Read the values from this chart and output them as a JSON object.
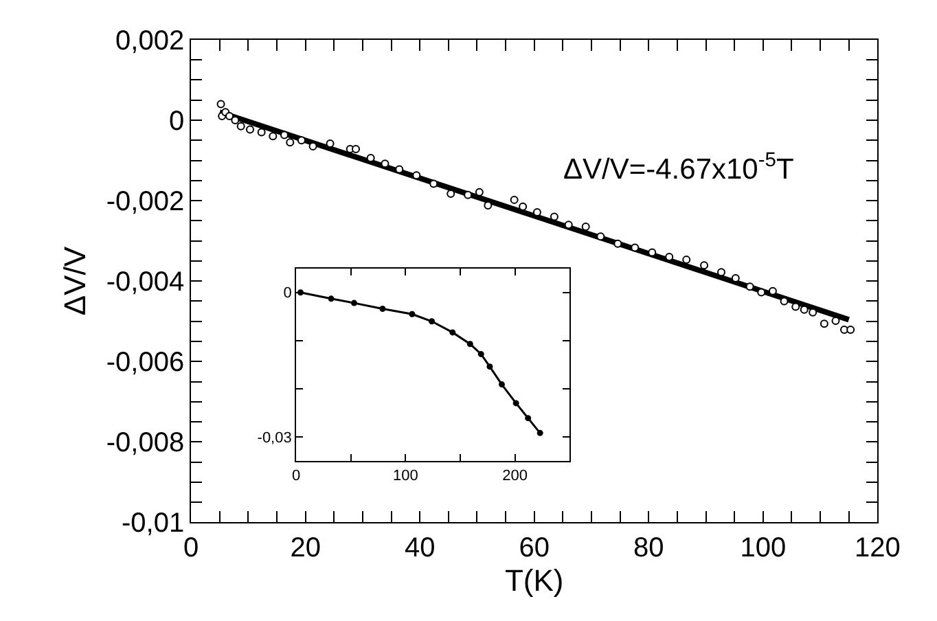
{
  "chart_data": [
    {
      "type": "scatter",
      "xlabel": "T(K)",
      "ylabel": "ΔV/V",
      "annotations": [
        "ΔV/V=-4.67x10$^{-5}$T"
      ],
      "xlim": [
        0,
        120
      ],
      "ylim": [
        -0.01,
        0.002
      ],
      "xticks": [
        0,
        {
          "value": 5,
          "label": null
        },
        {
          "value": 10,
          "label": null
        },
        {
          "value": 15,
          "label": null
        },
        20,
        {
          "value": 25,
          "label": null
        },
        {
          "value": 30,
          "label": null
        },
        {
          "value": 35,
          "label": null
        },
        40,
        {
          "value": 45,
          "label": null
        },
        {
          "value": 50,
          "label": null
        },
        {
          "value": 55,
          "label": null
        },
        60,
        {
          "value": 65,
          "label": null
        },
        {
          "value": 70,
          "label": null
        },
        {
          "value": 75,
          "label": null
        },
        80,
        {
          "value": 85,
          "label": null
        },
        {
          "value": 90,
          "label": null
        },
        {
          "value": 95,
          "label": null
        },
        100,
        {
          "value": 105,
          "label": null
        },
        {
          "value": 110,
          "label": null
        },
        {
          "value": 115,
          "label": null
        },
        120
      ],
      "yticks": [
        {
          "value": 0.002,
          "label": "0,002"
        },
        {
          "value": 0.0015,
          "label": null
        },
        {
          "value": 0.001,
          "label": null
        },
        {
          "value": 0.0005,
          "label": null
        },
        0,
        {
          "value": -0.0005,
          "label": null
        },
        {
          "value": -0.001,
          "label": null
        },
        {
          "value": -0.0015,
          "label": null
        },
        {
          "value": -0.002,
          "label": "-0,002"
        },
        {
          "value": -0.0025,
          "label": null
        },
        {
          "value": -0.003,
          "label": null
        },
        {
          "value": -0.0035,
          "label": null
        },
        {
          "value": -0.004,
          "label": "-0,004"
        },
        {
          "value": -0.0045,
          "label": null
        },
        {
          "value": -0.005,
          "label": null
        },
        {
          "value": -0.0055,
          "label": null
        },
        {
          "value": -0.006,
          "label": "-0,006"
        },
        {
          "value": -0.0065,
          "label": null
        },
        {
          "value": -0.007,
          "label": null
        },
        {
          "value": -0.0075,
          "label": null
        },
        {
          "value": -0.008,
          "label": "-0,008"
        },
        {
          "value": -0.0085,
          "label": null
        },
        {
          "value": -0.009,
          "label": null
        },
        {
          "value": -0.0095,
          "label": null
        },
        {
          "value": -0.01,
          "label": "-0,01"
        }
      ],
      "series": [
        {
          "type": "scatter",
          "marker": "circle",
          "color": "#000000",
          "x": [
            5.2,
            5.4,
            6,
            6.7,
            7.7,
            8.7,
            10.3,
            12.3,
            14.3,
            16.3,
            17.3,
            19.3,
            21.3,
            24.3,
            27.8,
            28.8,
            31.4,
            33.9,
            36.4,
            39.4,
            42.4,
            45.4,
            48.4,
            50.4,
            51.9,
            56.5,
            58,
            60.5,
            63.5,
            66,
            69,
            71.6,
            74.6,
            77.6,
            80.6,
            83.6,
            86.6,
            89.7,
            92.7,
            95.2,
            97.7,
            99.7,
            101.7,
            103.7,
            105.7,
            107.2,
            108.7,
            110.7,
            112.7,
            114.2,
            115.3
          ],
          "values": [
            0.0004,
            0.0001,
            0.0002,
            0.0001,
            0,
            -0.00015,
            -0.00023,
            -0.0003,
            -0.0004,
            -0.00037,
            -0.00055,
            -0.0005,
            -0.00065,
            -0.00058,
            -0.00072,
            -0.00072,
            -0.00094,
            -0.00108,
            -0.00122,
            -0.00137,
            -0.00158,
            -0.00183,
            -0.00186,
            -0.00179,
            -0.00212,
            -0.00198,
            -0.00215,
            -0.00229,
            -0.0024,
            -0.0026,
            -0.00265,
            -0.00289,
            -0.00307,
            -0.00317,
            -0.00329,
            -0.0034,
            -0.00347,
            -0.00361,
            -0.00378,
            -0.00393,
            -0.00414,
            -0.00428,
            -0.00425,
            -0.0045,
            -0.00464,
            -0.00471,
            -0.00478,
            -0.00506,
            -0.00499,
            -0.00521,
            -0.00521
          ]
        },
        {
          "type": "line",
          "marker": "none",
          "line_style": "solid",
          "color": "#000000",
          "x": [
            5,
            115
          ],
          "values": [
            0.0002,
            -0.00496
          ]
        }
      ]
    },
    {
      "type": "line",
      "marker": "circle",
      "line_style": "solid",
      "xlim": [
        0,
        250
      ],
      "ylim": [
        -0.035,
        0.005
      ],
      "xticks": [
        0,
        {
          "value": 50,
          "label": null
        },
        100,
        {
          "value": 150,
          "label": null
        },
        200
      ],
      "yticks": [
        0,
        {
          "value": -0.01,
          "label": null
        },
        {
          "value": -0.02,
          "label": null
        },
        {
          "value": -0.03,
          "label": "-0,03"
        }
      ],
      "series": [
        {
          "color": "#000000",
          "x": [
            4,
            32,
            53,
            79,
            106,
            124,
            143,
            159,
            169,
            177,
            188,
            201,
            212,
            223
          ],
          "values": [
            0,
            -0.0013,
            -0.0022,
            -0.0034,
            -0.0045,
            -0.006,
            -0.0083,
            -0.0107,
            -0.0128,
            -0.0154,
            -0.0191,
            -0.023,
            -0.0261,
            -0.0292
          ]
        }
      ]
    }
  ]
}
